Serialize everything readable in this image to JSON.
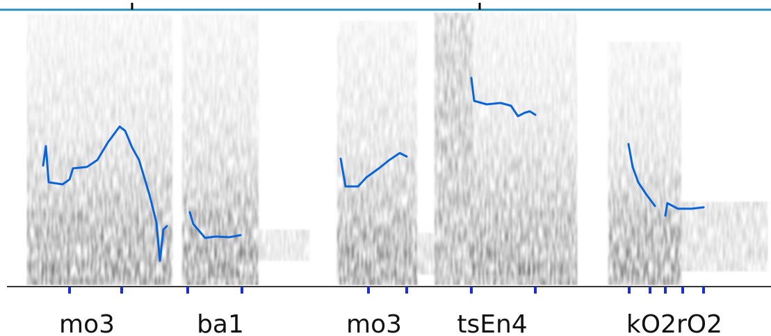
{
  "syllables": [
    "mo3",
    "ba1",
    "mo3",
    "tsEn4",
    "kO2rO2"
  ]
}
